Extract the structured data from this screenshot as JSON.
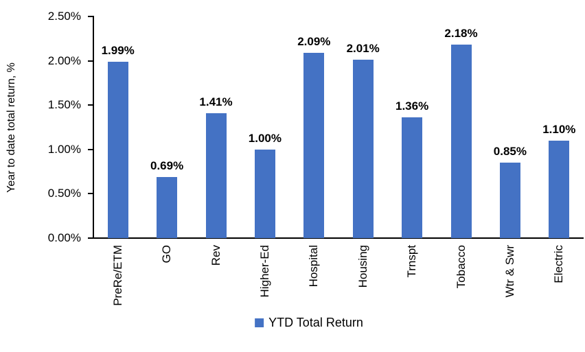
{
  "chart_data": {
    "type": "bar",
    "title": "",
    "categories": [
      "PreRe/ETM",
      "GO",
      "Rev",
      "Higher-Ed",
      "Hospital",
      "Housing",
      "Trnspt",
      "Tobacco",
      "Wtr & Swr",
      "Electric"
    ],
    "values": [
      1.99,
      0.69,
      1.41,
      1.0,
      2.09,
      2.01,
      1.36,
      2.18,
      0.85,
      1.1
    ],
    "value_labels": [
      "1.99%",
      "0.69%",
      "1.41%",
      "1.00%",
      "2.09%",
      "2.01%",
      "1.36%",
      "2.18%",
      "0.85%",
      "1.10%"
    ],
    "xlabel": "",
    "ylabel": "Year to date total return, %",
    "ylim": [
      0,
      2.5
    ],
    "ytick_labels": [
      "0.00%",
      "0.50%",
      "1.00%",
      "1.50%",
      "2.00%",
      "2.50%"
    ],
    "ytick_values": [
      0,
      0.5,
      1.0,
      1.5,
      2.0,
      2.5
    ],
    "grid": false,
    "legend_position": "bottom",
    "legend": "YTD Total Return",
    "bar_color": "#4472C4",
    "axis_color": "#000000"
  }
}
